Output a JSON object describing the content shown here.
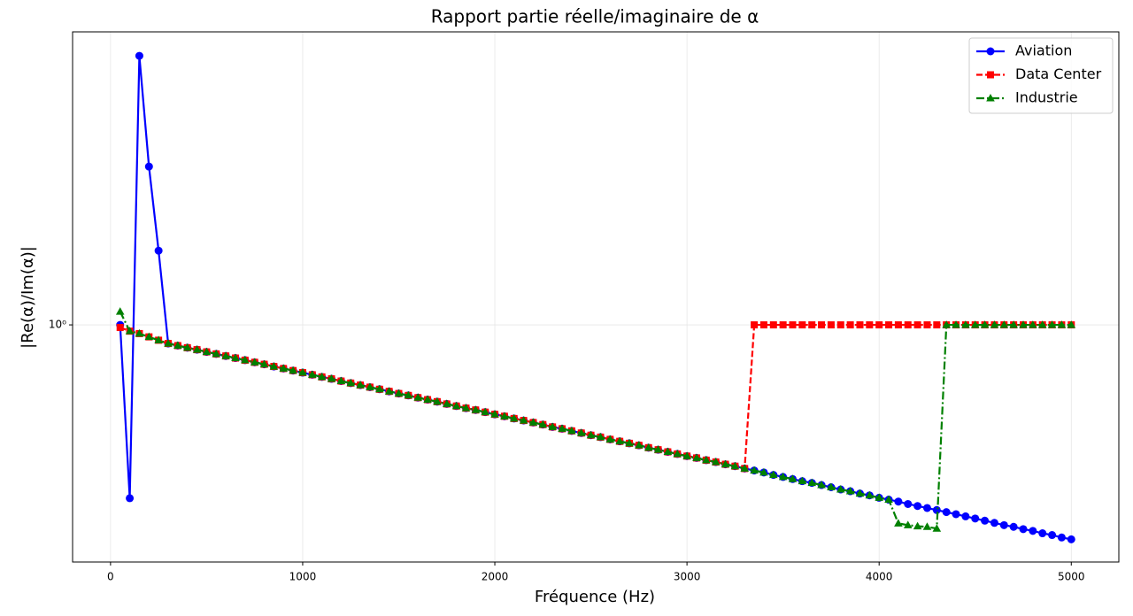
{
  "chart_data": {
    "type": "line",
    "title": "Rapport partie réelle/imaginaire de α",
    "xlabel": "Fréquence (Hz)",
    "ylabel": "|Re(α)/Im(α)|",
    "x": [
      50,
      100,
      150,
      200,
      250,
      300,
      350,
      400,
      450,
      500,
      550,
      600,
      650,
      700,
      750,
      800,
      850,
      900,
      950,
      1000,
      1050,
      1100,
      1150,
      1200,
      1250,
      1300,
      1350,
      1400,
      1450,
      1500,
      1550,
      1600,
      1650,
      1700,
      1750,
      1800,
      1850,
      1900,
      1950,
      2000,
      2050,
      2100,
      2150,
      2200,
      2250,
      2300,
      2350,
      2400,
      2450,
      2500,
      2550,
      2600,
      2650,
      2700,
      2750,
      2800,
      2850,
      2900,
      2950,
      3000,
      3050,
      3100,
      3150,
      3200,
      3250,
      3300,
      3350,
      3400,
      3450,
      3500,
      3550,
      3600,
      3650,
      3700,
      3750,
      3800,
      3850,
      3900,
      3950,
      4000,
      4050,
      4100,
      4150,
      4200,
      4250,
      4300,
      4350,
      4400,
      4450,
      4500,
      4550,
      4600,
      4650,
      4700,
      4750,
      4800,
      4850,
      4900,
      4950,
      5000
    ],
    "series": [
      {
        "name": "Aviation",
        "color": "#0000ff",
        "marker": "o",
        "linestyle": "solid",
        "values": [
          1.0,
          0.324,
          5.75,
          2.8,
          1.62,
          0.886,
          0.874,
          0.862,
          0.851,
          0.839,
          0.828,
          0.817,
          0.806,
          0.795,
          0.784,
          0.774,
          0.763,
          0.753,
          0.743,
          0.733,
          0.723,
          0.713,
          0.704,
          0.694,
          0.685,
          0.676,
          0.667,
          0.658,
          0.649,
          0.64,
          0.632,
          0.623,
          0.615,
          0.607,
          0.598,
          0.59,
          0.582,
          0.575,
          0.567,
          0.559,
          0.552,
          0.544,
          0.537,
          0.53,
          0.523,
          0.515,
          0.509,
          0.502,
          0.495,
          0.488,
          0.482,
          0.475,
          0.469,
          0.463,
          0.457,
          0.45,
          0.444,
          0.438,
          0.432,
          0.426,
          0.421,
          0.415,
          0.41,
          0.404,
          0.399,
          0.393,
          0.388,
          0.383,
          0.377,
          0.372,
          0.367,
          0.362,
          0.358,
          0.353,
          0.348,
          0.343,
          0.339,
          0.334,
          0.33,
          0.325,
          0.321,
          0.317,
          0.312,
          0.308,
          0.304,
          0.3,
          0.296,
          0.292,
          0.288,
          0.284,
          0.28,
          0.276,
          0.272,
          0.269,
          0.265,
          0.262,
          0.258,
          0.255,
          0.251,
          0.248
        ]
      },
      {
        "name": "Data Center",
        "color": "#ff0000",
        "marker": "s",
        "linestyle": "dashed",
        "values": [
          0.983,
          0.96,
          0.945,
          0.925,
          0.905,
          0.886,
          0.874,
          0.862,
          0.851,
          0.839,
          0.828,
          0.817,
          0.806,
          0.795,
          0.784,
          0.774,
          0.763,
          0.753,
          0.743,
          0.733,
          0.723,
          0.713,
          0.704,
          0.694,
          0.685,
          0.676,
          0.667,
          0.658,
          0.649,
          0.64,
          0.632,
          0.623,
          0.615,
          0.607,
          0.598,
          0.59,
          0.582,
          0.575,
          0.567,
          0.559,
          0.552,
          0.544,
          0.537,
          0.53,
          0.523,
          0.515,
          0.509,
          0.502,
          0.495,
          0.488,
          0.482,
          0.475,
          0.469,
          0.463,
          0.457,
          0.45,
          0.444,
          0.438,
          0.432,
          0.426,
          0.421,
          0.415,
          0.41,
          0.404,
          0.399,
          0.393,
          1.0,
          1.0,
          1.0,
          1.0,
          1.0,
          1.0,
          1.0,
          1.0,
          1.0,
          1.0,
          1.0,
          1.0,
          1.0,
          1.0,
          1.0,
          1.0,
          1.0,
          1.0,
          1.0,
          1.0,
          1.0,
          1.0,
          1.0,
          1.0,
          1.0,
          1.0,
          1.0,
          1.0,
          1.0,
          1.0,
          1.0,
          1.0,
          1.0,
          1.0
        ]
      },
      {
        "name": "Industrie",
        "color": "#008000",
        "marker": "^",
        "linestyle": "dashdot",
        "values": [
          1.09,
          0.96,
          0.945,
          0.925,
          0.905,
          0.886,
          0.874,
          0.862,
          0.851,
          0.839,
          0.828,
          0.817,
          0.806,
          0.795,
          0.784,
          0.774,
          0.763,
          0.753,
          0.743,
          0.733,
          0.723,
          0.713,
          0.704,
          0.694,
          0.685,
          0.676,
          0.667,
          0.658,
          0.649,
          0.64,
          0.632,
          0.623,
          0.615,
          0.607,
          0.598,
          0.59,
          0.582,
          0.575,
          0.567,
          0.559,
          0.552,
          0.544,
          0.537,
          0.53,
          0.523,
          0.515,
          0.509,
          0.502,
          0.495,
          0.488,
          0.482,
          0.475,
          0.469,
          0.463,
          0.457,
          0.45,
          0.444,
          0.438,
          0.432,
          0.426,
          0.421,
          0.415,
          0.41,
          0.404,
          0.399,
          0.393,
          0.388,
          0.383,
          0.377,
          0.372,
          0.367,
          0.362,
          0.358,
          0.353,
          0.348,
          0.343,
          0.339,
          0.334,
          0.33,
          0.325,
          0.321,
          0.275,
          0.272,
          0.27,
          0.269,
          0.266,
          1.0,
          1.0,
          1.0,
          1.0,
          1.0,
          1.0,
          1.0,
          1.0,
          1.0,
          1.0,
          1.0,
          1.0,
          1.0,
          1.0
        ]
      }
    ],
    "xlim": [
      -197.5,
      5247.5
    ],
    "xticks": [
      0,
      1000,
      2000,
      3000,
      4000,
      5000
    ],
    "ylim": [
      0.214,
      6.72
    ],
    "yticks": [
      {
        "value": 1,
        "label": "10⁰"
      }
    ],
    "yscale": "log",
    "grid": true,
    "legend": "upper right"
  }
}
